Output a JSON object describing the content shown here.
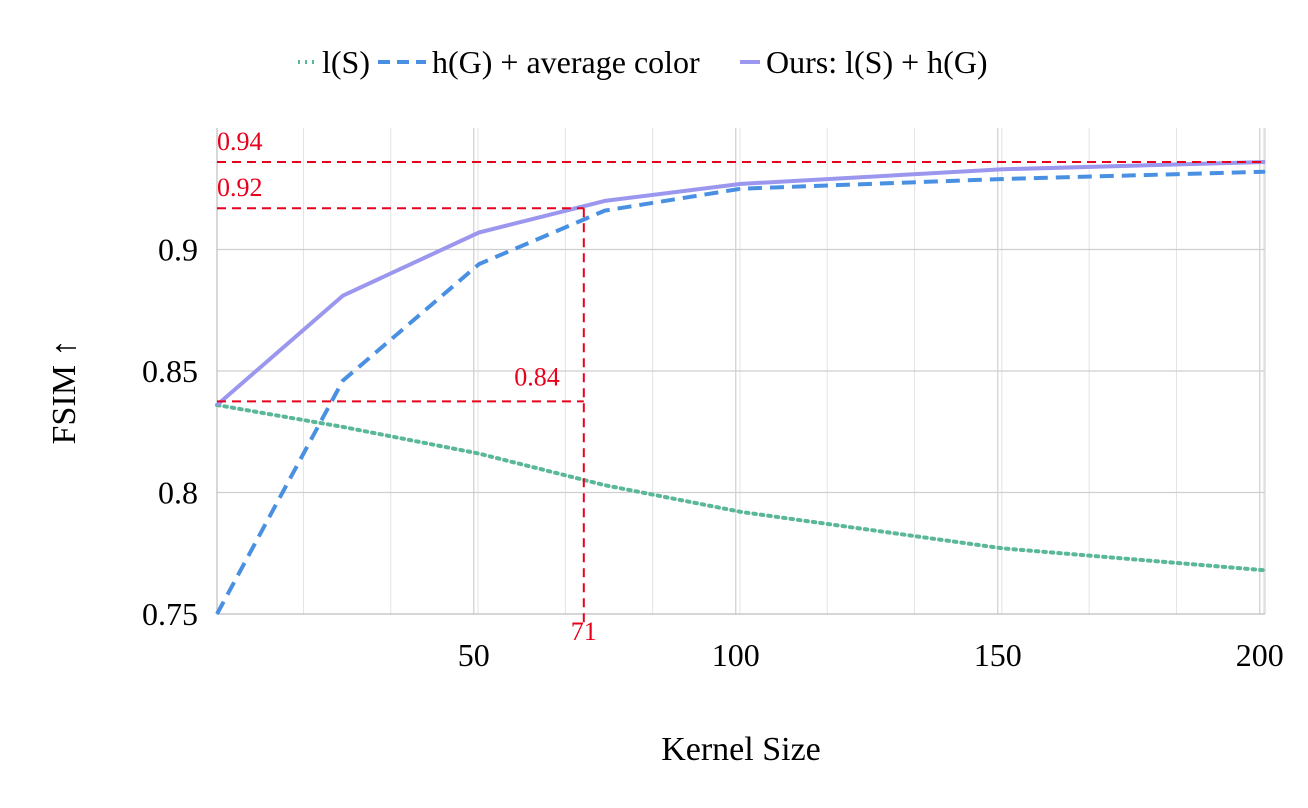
{
  "chart_data": {
    "type": "line",
    "xlabel": "Kernel Size",
    "ylabel": "FSIM ↑",
    "xlim": [
      1,
      201
    ],
    "ylim": [
      0.75,
      0.95
    ],
    "x_ticks": [
      50,
      100,
      150,
      200
    ],
    "y_ticks": [
      0.75,
      0.8,
      0.85,
      0.9
    ],
    "y_tick_labels": [
      "0.75",
      "0.8",
      "0.85",
      "0.9"
    ],
    "x_tick_labels": [
      "50",
      "100",
      "150",
      "200"
    ],
    "grid": true,
    "legend_position": "top",
    "series": [
      {
        "name": "l(S)",
        "style": "dotted",
        "color": "#5bb79a",
        "x": [
          1,
          25,
          51,
          75,
          101,
          151,
          201
        ],
        "values": [
          0.836,
          0.827,
          0.816,
          0.803,
          0.792,
          0.777,
          0.768
        ]
      },
      {
        "name": "h(G) + average color",
        "style": "dashed",
        "color": "#4a90e2",
        "x": [
          1,
          25,
          51,
          75,
          101,
          151,
          201
        ],
        "values": [
          0.75,
          0.846,
          0.894,
          0.916,
          0.925,
          0.929,
          0.932
        ]
      },
      {
        "name": "Ours: l(S) + h(G)",
        "style": "solid",
        "color": "#9b97ee",
        "x": [
          1,
          25,
          51,
          75,
          101,
          151,
          201
        ],
        "values": [
          0.836,
          0.881,
          0.907,
          0.92,
          0.927,
          0.933,
          0.936
        ]
      }
    ],
    "annotations": {
      "color": "#e8001c",
      "vertical": {
        "x": 71,
        "label": "71"
      },
      "horizontal": [
        {
          "y": 0.936,
          "label": "0.94",
          "x_end": 201
        },
        {
          "y": 0.917,
          "label": "0.92",
          "x_end": 71
        },
        {
          "y": 0.8375,
          "label": "0.84",
          "x_end": 71
        }
      ]
    }
  }
}
